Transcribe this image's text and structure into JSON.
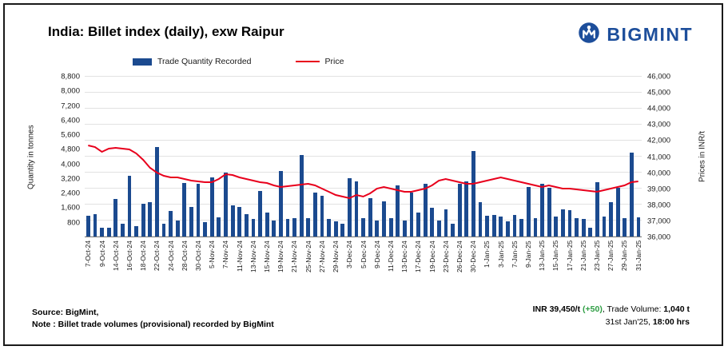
{
  "header": {
    "title": "India: Billet index (daily), exw Raipur",
    "brand": "BIGMINT"
  },
  "chart_data": {
    "type": "bar+line",
    "title": "India: Billet index (daily), exw Raipur",
    "ylabel_left": "Quantity in tonnes",
    "ylabel_right": "Prices in INR/t",
    "ylim_left": [
      0,
      8800
    ],
    "ylim_right": [
      36000,
      46000
    ],
    "yticks_left": [
      800,
      1600,
      2400,
      3200,
      4000,
      4800,
      5600,
      6400,
      7200,
      8000,
      8800
    ],
    "yticks_right": [
      36000,
      37000,
      38000,
      39000,
      40000,
      41000,
      42000,
      43000,
      44000,
      45000,
      46000
    ],
    "grid": true,
    "legend_position": "top",
    "label_every": 2,
    "categories": [
      "7-Oct-24",
      "8-Oct-24",
      "9-Oct-24",
      "10-Oct-24",
      "14-Oct-24",
      "15-Oct-24",
      "16-Oct-24",
      "17-Oct-24",
      "18-Oct-24",
      "21-Oct-24",
      "22-Oct-24",
      "23-Oct-24",
      "24-Oct-24",
      "25-Oct-24",
      "28-Oct-24",
      "29-Oct-24",
      "30-Oct-24",
      "4-Nov-24",
      "5-Nov-24",
      "6-Nov-24",
      "7-Nov-24",
      "8-Nov-24",
      "11-Nov-24",
      "12-Nov-24",
      "13-Nov-24",
      "14-Nov-24",
      "15-Nov-24",
      "18-Nov-24",
      "19-Nov-24",
      "20-Nov-24",
      "21-Nov-24",
      "22-Nov-24",
      "25-Nov-24",
      "26-Nov-24",
      "27-Nov-24",
      "28-Nov-24",
      "29-Nov-24",
      "2-Dec-24",
      "3-Dec-24",
      "4-Dec-24",
      "5-Dec-24",
      "6-Dec-24",
      "9-Dec-24",
      "10-Dec-24",
      "11-Dec-24",
      "12-Dec-24",
      "13-Dec-24",
      "16-Dec-24",
      "17-Dec-24",
      "18-Dec-24",
      "19-Dec-24",
      "20-Dec-24",
      "23-Dec-24",
      "24-Dec-24",
      "26-Dec-24",
      "27-Dec-24",
      "30-Dec-24",
      "31-Dec-24",
      "1-Jan-25",
      "2-Jan-25",
      "3-Jan-25",
      "6-Jan-25",
      "7-Jan-25",
      "8-Jan-25",
      "9-Jan-25",
      "10-Jan-25",
      "13-Jan-25",
      "14-Jan-25",
      "15-Jan-25",
      "16-Jan-25",
      "17-Jan-25",
      "20-Jan-25",
      "21-Jan-25",
      "22-Jan-25",
      "23-Jan-25",
      "24-Jan-25",
      "27-Jan-25",
      "28-Jan-25",
      "29-Jan-25",
      "30-Jan-25",
      "31-Jan-25"
    ],
    "series": [
      {
        "name": "Trade Quantity Recorded",
        "type": "bar",
        "axis": "left",
        "color": "#1b4a8f",
        "values": [
          1150,
          1250,
          500,
          470,
          2050,
          700,
          3350,
          560,
          1800,
          1900,
          4950,
          700,
          1400,
          860,
          2950,
          1620,
          2900,
          800,
          3250,
          1050,
          3500,
          1700,
          1650,
          1250,
          950,
          2500,
          1300,
          900,
          3600,
          950,
          1000,
          4500,
          1000,
          2400,
          2250,
          950,
          850,
          700,
          3200,
          3050,
          1000,
          2100,
          900,
          1950,
          1000,
          2800,
          900,
          2400,
          1300,
          2900,
          1600,
          900,
          1500,
          700,
          2900,
          3050,
          4700,
          1900,
          1150,
          1200,
          1100,
          850,
          1200,
          950,
          2750,
          1000,
          2900,
          2700,
          1100,
          1500,
          1450,
          1000,
          950,
          500,
          3000,
          1100,
          1900,
          2700,
          1000,
          4600,
          1040
        ]
      },
      {
        "name": "Price",
        "type": "line",
        "axis": "right",
        "color": "#e8001c",
        "values": [
          41700,
          41600,
          41300,
          41500,
          41550,
          41500,
          41450,
          41200,
          40800,
          40300,
          40000,
          39800,
          39700,
          39700,
          39600,
          39500,
          39450,
          39400,
          39400,
          39600,
          39900,
          39850,
          39700,
          39600,
          39500,
          39400,
          39350,
          39200,
          39100,
          39150,
          39200,
          39250,
          39300,
          39200,
          39000,
          38800,
          38600,
          38500,
          38400,
          38600,
          38500,
          38700,
          39000,
          39100,
          39000,
          38900,
          38800,
          38800,
          38900,
          39000,
          39200,
          39500,
          39600,
          39500,
          39400,
          39300,
          39300,
          39400,
          39500,
          39600,
          39700,
          39600,
          39500,
          39400,
          39300,
          39200,
          39100,
          39200,
          39100,
          39000,
          39000,
          38950,
          38900,
          38850,
          38800,
          38900,
          39000,
          39100,
          39200,
          39400,
          39450
        ]
      }
    ]
  },
  "footer": {
    "source": "Source: BigMint,",
    "note": "Note : Billet trade volumes (provisional) recorded by BigMint",
    "price": "INR 39,450/t",
    "change": "(+50)",
    "volume_prefix": ", Trade Volume: ",
    "volume": "1,040 t",
    "date": "31st Jan'25,",
    "time": "18:00 hrs"
  }
}
